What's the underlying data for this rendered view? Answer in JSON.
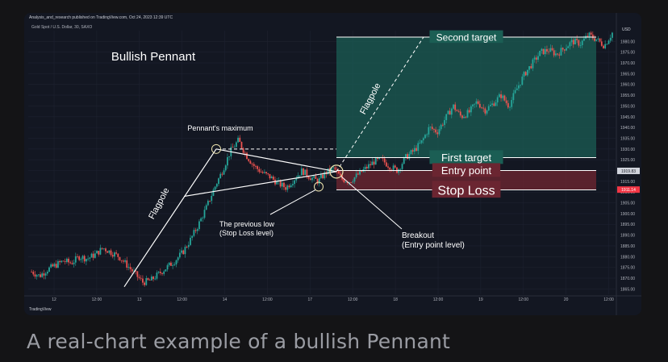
{
  "header": {
    "published_line": "Analysis_and_research published on TradingView.com, Oct 24, 2023 12:39 UTC",
    "symbol_line": "Gold Spot / U.S. Dollar, 30, SAXO",
    "logo_text": "TradingView"
  },
  "caption": "A real-chart example of a bullish Pennant",
  "colors": {
    "background": "#131722",
    "up_candle": "#26a69a",
    "down_candle": "#ef5350",
    "target_zone": "#1b5e54",
    "stop_zone": "#6b2531",
    "annotation": "#ffffff"
  },
  "chart_data": {
    "type": "candlestick",
    "title": "Bullish Pennant",
    "instrument": "Gold Spot / U.S. Dollar",
    "timeframe": "30",
    "currency_label": "USD",
    "x_tick_labels": [
      "12",
      "12:00",
      "13",
      "12:00",
      "14",
      "12:00",
      "17",
      "12:00",
      "18",
      "12:00",
      "19",
      "12:00",
      "20",
      "12:00"
    ],
    "y_tick_labels": [
      "1865.00",
      "1870.00",
      "1875.00",
      "1880.00",
      "1885.00",
      "1890.00",
      "1895.00",
      "1900.00",
      "1905.00",
      "1910.00",
      "1915.00",
      "1920.00",
      "1925.00",
      "1930.00",
      "1935.00",
      "1940.00",
      "1945.00",
      "1950.00",
      "1955.00",
      "1960.00",
      "1965.00",
      "1970.00",
      "1975.00",
      "1980.00"
    ],
    "ylim": [
      1862.5,
      1985
    ],
    "price_badges": [
      {
        "label": "1919.83",
        "value": 1919.83,
        "color": "#d1d4dc"
      },
      {
        "label": "1911.14",
        "value": 1911.14,
        "color": "#f23645"
      }
    ],
    "levels": {
      "second_target": 1982,
      "first_target": 1926,
      "entry_point": 1920,
      "stop_loss": 1911
    },
    "annotations": {
      "pennant_max": "Pennant's maximum",
      "flagpole_1": "Flagpole",
      "flagpole_2": "Flagpole",
      "previous_low_1": "The previous low",
      "previous_low_2": "(Stop Loss level)",
      "breakout_1": "Breakout",
      "breakout_2": "(Entry point level)",
      "second_target": "Second target",
      "first_target": "First target",
      "entry_point": "Entry point",
      "stop_loss": "Stop Loss"
    },
    "anchors": {
      "closes": [
        1873,
        1871,
        1874,
        1876,
        1878,
        1877,
        1880,
        1879,
        1881,
        1884,
        1882,
        1880,
        1876,
        1872,
        1868,
        1869,
        1872,
        1875,
        1878,
        1882,
        1888,
        1895,
        1903,
        1912,
        1920,
        1929,
        1934,
        1927,
        1922,
        1919,
        1917,
        1914,
        1912,
        1916,
        1920,
        1917,
        1915,
        1919,
        1921,
        1916,
        1915,
        1918,
        1921,
        1924,
        1925,
        1922,
        1920,
        1926,
        1929,
        1933,
        1940,
        1938,
        1944,
        1950,
        1945,
        1947,
        1952,
        1948,
        1951,
        1955,
        1950,
        1958,
        1965,
        1970,
        1975,
        1976,
        1974,
        1977,
        1980,
        1979,
        1983,
        1981,
        1978,
        1984
      ]
    }
  }
}
